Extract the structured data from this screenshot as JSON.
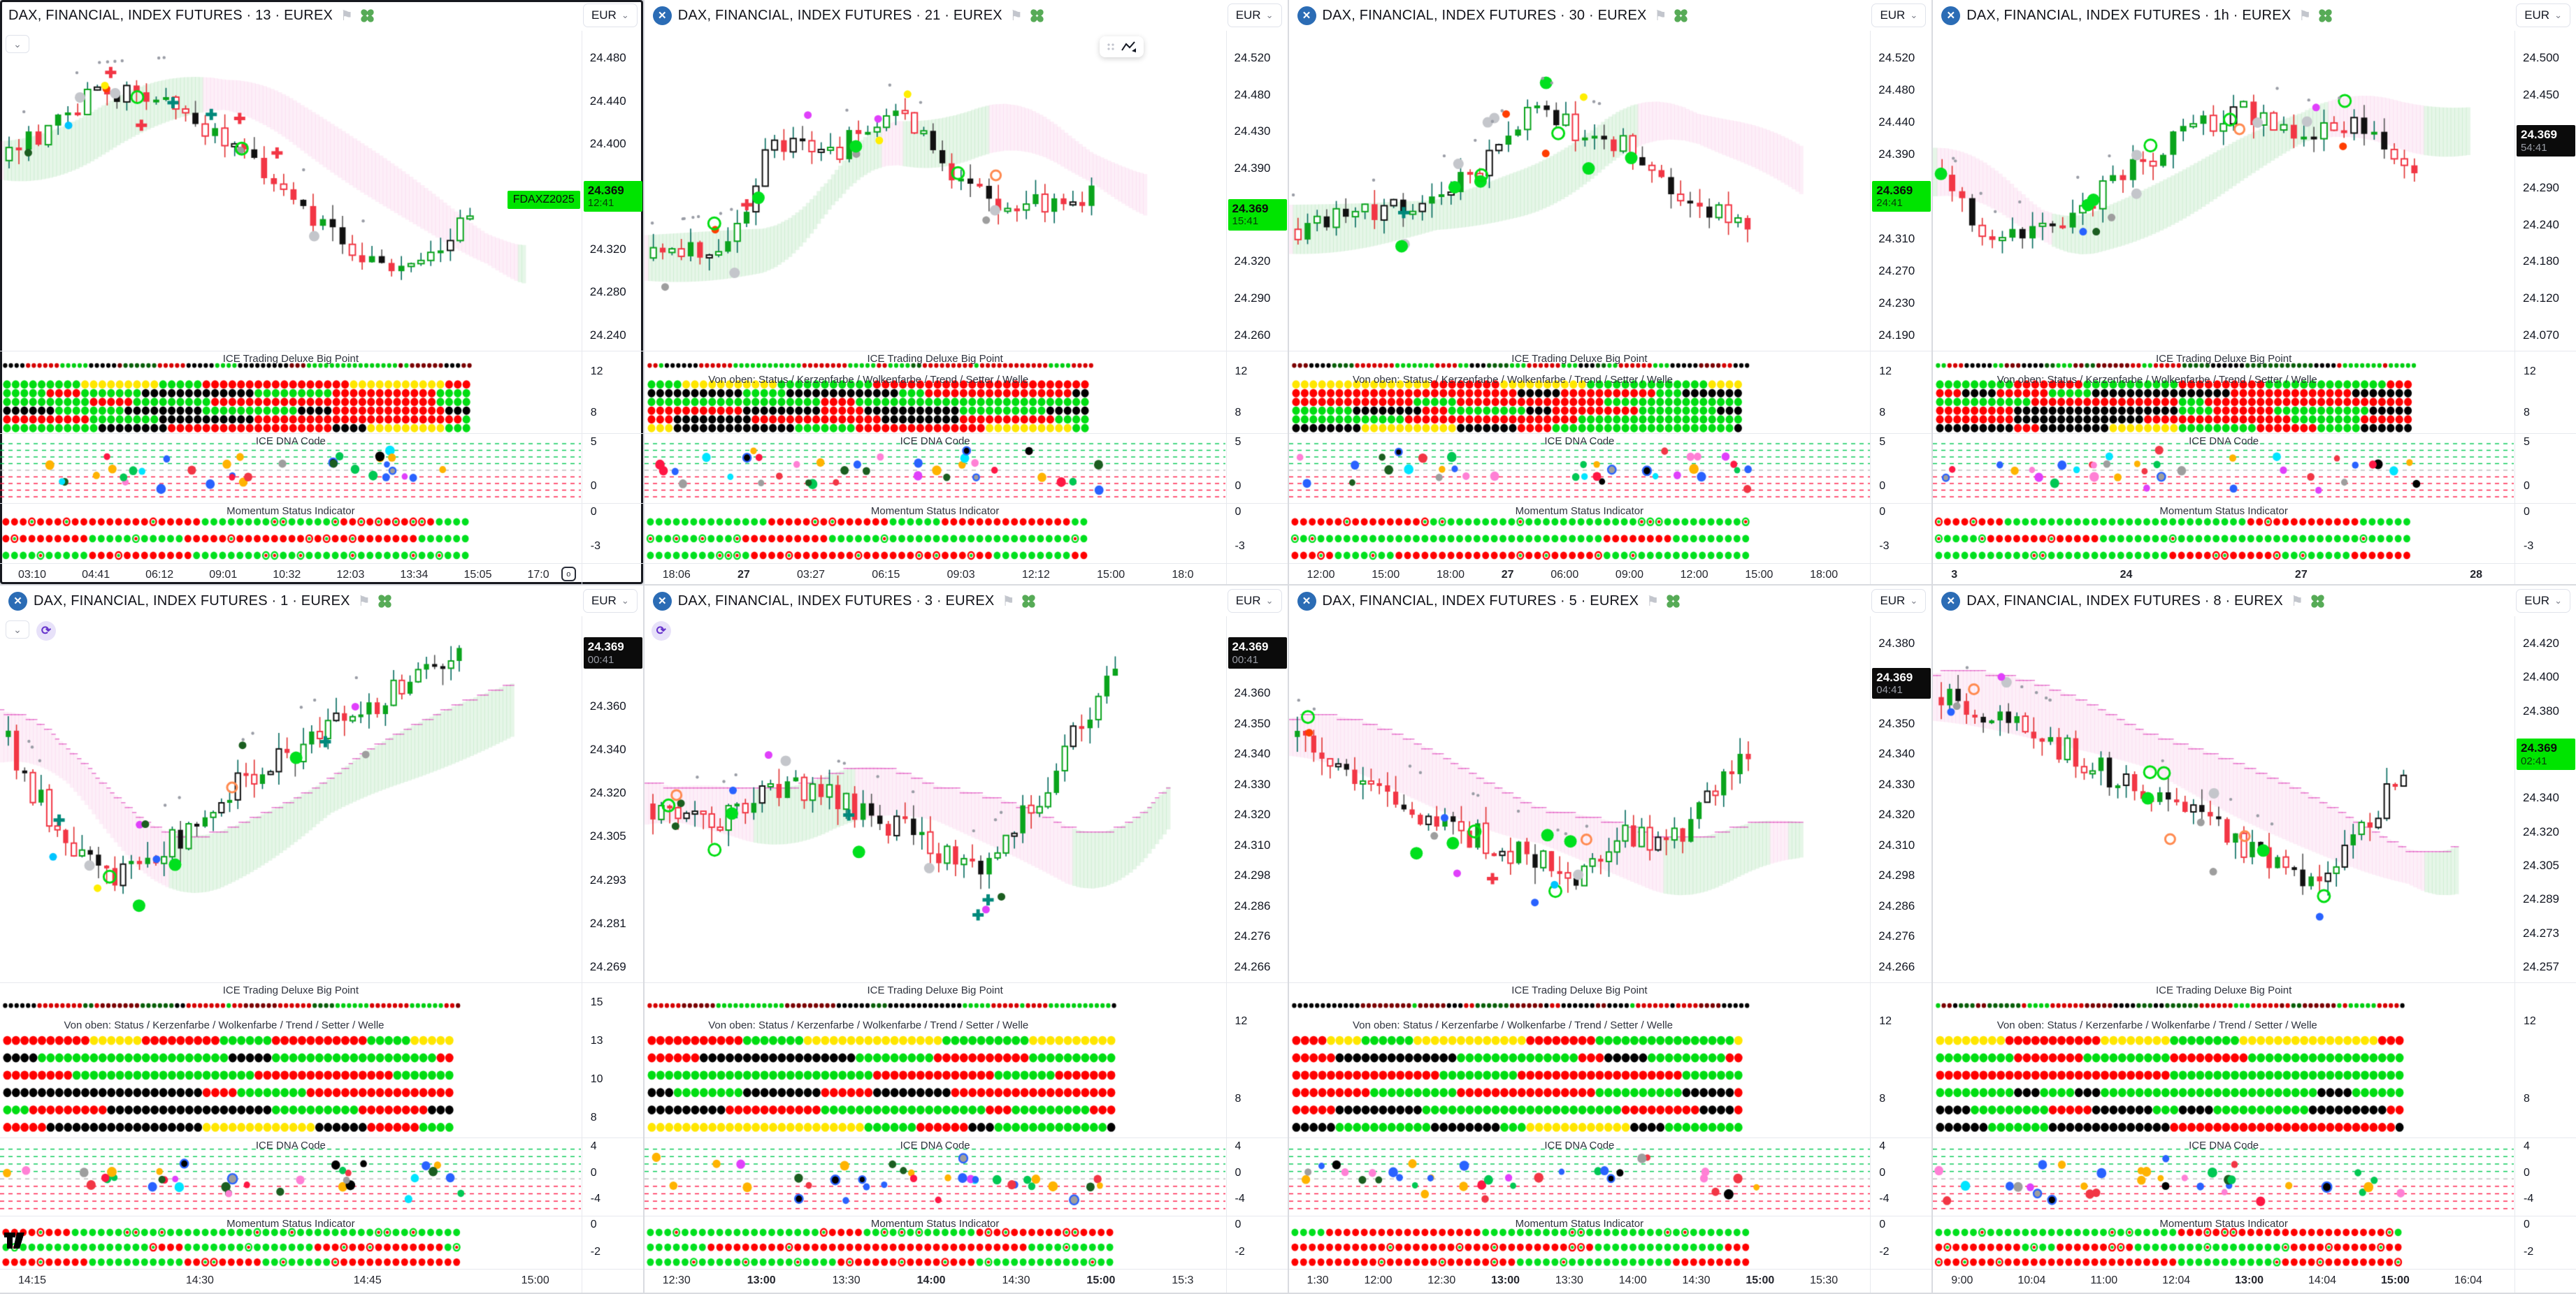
{
  "shared": {
    "currency": "EUR",
    "currency_chevron": "⌄",
    "big_point_title": "ICE Trading Deluxe Big Point",
    "von_oben_label": "Von oben: Status / Kerzenfarbe / Wolkenfarbe / Trend / Setter / Welle",
    "dna_title": "ICE DNA Code",
    "momentum_title": "Momentum Status Indicator",
    "eurex_logo_glyph": "✕",
    "flag_glyph": "⚑",
    "collapse_glyph": "⌄",
    "refresh_glyph": "⟳",
    "colors": {
      "up": "#0aa41c",
      "down": "#f23645",
      "neutral": "#111111",
      "badge_green": "#00e400",
      "badge_black": "#0b0b0b",
      "cloud_green": "rgba(10,164,28,0.10)",
      "cloud_pink": "rgba(233,30,160,0.07)",
      "cloud_edge": "rgba(221,68,187,0.65)",
      "dna_line_green": "#00c853",
      "dna_line_red": "#ff1744",
      "dna_line_gray": "#b8b8b8"
    }
  },
  "panels": [
    {
      "title": "DAX, FINANCIAL, INDEX FUTURES · 13 · EUREX",
      "show_logo": false,
      "active": true,
      "badge": {
        "symbol": "FDAXZ2025",
        "price": "24.369",
        "countdown": "12:41",
        "variant": "green"
      },
      "price_axis": [
        "24.480",
        "24.440",
        "24.400",
        "24.320",
        "24.280",
        "24.240"
      ],
      "badge_after": 2,
      "time_axis": [
        {
          "t": "03:10"
        },
        {
          "t": "04:41"
        },
        {
          "t": "06:12"
        },
        {
          "t": "09:01"
        },
        {
          "t": "10:32"
        },
        {
          "t": "12:03"
        },
        {
          "t": "13:34"
        },
        {
          "t": "15:05"
        },
        {
          "t": "17:0"
        }
      ],
      "axes": {
        "big_point": [
          "12",
          "8"
        ],
        "dna": [
          "5",
          "0"
        ],
        "momentum": [
          "0",
          "-3"
        ]
      },
      "show_von_oben": false,
      "collapse_btn": true,
      "clock_icon": true,
      "seed": 101,
      "extent": 0.82,
      "trend": [
        [
          0,
          0.38
        ],
        [
          0.18,
          0.16
        ],
        [
          0.34,
          0.14
        ],
        [
          0.48,
          0.34
        ],
        [
          0.62,
          0.52
        ],
        [
          0.76,
          0.72
        ],
        [
          0.86,
          0.78
        ],
        [
          1,
          0.52
        ]
      ]
    },
    {
      "title": "DAX, FINANCIAL, INDEX FUTURES · 21 · EUREX",
      "show_logo": true,
      "badge": {
        "price": "24.369",
        "countdown": "15:41",
        "variant": "green"
      },
      "price_axis": [
        "24.520",
        "24.480",
        "24.430",
        "24.390",
        "24.320",
        "24.290",
        "24.260"
      ],
      "badge_after": 3,
      "time_axis": [
        {
          "t": "18:06"
        },
        {
          "t": "27",
          "b": true
        },
        {
          "t": "03:27"
        },
        {
          "t": "06:15"
        },
        {
          "t": "09:03"
        },
        {
          "t": "12:12"
        },
        {
          "t": "15:00"
        },
        {
          "t": "18:0"
        }
      ],
      "axes": {
        "big_point": [
          "12",
          "8"
        ],
        "dna": [
          "5",
          "0"
        ],
        "momentum": [
          "0",
          "-3"
        ]
      },
      "show_von_oben": true,
      "float_toolbar": true,
      "seed": 202,
      "extent": 0.78,
      "trend": [
        [
          0,
          0.72
        ],
        [
          0.18,
          0.68
        ],
        [
          0.28,
          0.3
        ],
        [
          0.42,
          0.34
        ],
        [
          0.55,
          0.22
        ],
        [
          0.68,
          0.42
        ],
        [
          0.82,
          0.55
        ],
        [
          1,
          0.5
        ]
      ]
    },
    {
      "title": "DAX, FINANCIAL, INDEX FUTURES · 30 · EUREX",
      "show_logo": true,
      "badge": {
        "price": "24.369",
        "countdown": "24:41",
        "variant": "green"
      },
      "price_axis": [
        "24.520",
        "24.480",
        "24.440",
        "24.390",
        "24.310",
        "24.270",
        "24.230",
        "24.190"
      ],
      "badge_after": 3,
      "time_axis": [
        {
          "t": "12:00"
        },
        {
          "t": "15:00"
        },
        {
          "t": "18:00"
        },
        {
          "t": "27",
          "b": true
        },
        {
          "t": "06:00"
        },
        {
          "t": "09:00"
        },
        {
          "t": "12:00"
        },
        {
          "t": "15:00"
        },
        {
          "t": "18:00"
        }
      ],
      "axes": {
        "big_point": [
          "12",
          "8"
        ],
        "dna": [
          "5",
          "0"
        ],
        "momentum": [
          "0",
          "-3"
        ]
      },
      "show_von_oben": true,
      "seed": 303,
      "extent": 0.8,
      "trend": [
        [
          0,
          0.62
        ],
        [
          0.2,
          0.56
        ],
        [
          0.38,
          0.45
        ],
        [
          0.52,
          0.2
        ],
        [
          0.62,
          0.28
        ],
        [
          0.75,
          0.35
        ],
        [
          0.88,
          0.55
        ],
        [
          1,
          0.62
        ]
      ]
    },
    {
      "title": "DAX, FINANCIAL, INDEX FUTURES · 1h · EUREX",
      "show_logo": true,
      "badge": {
        "price": "24.369",
        "countdown": "54:41",
        "variant": "black"
      },
      "price_axis": [
        "24.500",
        "24.450",
        "24.290",
        "24.240",
        "24.180",
        "24.120",
        "24.070"
      ],
      "badge_after": 1,
      "time_axis": [
        {
          "t": "3",
          "b": true
        },
        {
          "t": "24",
          "b": true
        },
        {
          "t": "27",
          "b": true
        },
        {
          "t": "28",
          "b": true
        }
      ],
      "axes": {
        "big_point": [
          "12",
          "8"
        ],
        "dna": [
          "5",
          "0"
        ],
        "momentum": [
          "0",
          "-3"
        ]
      },
      "show_von_oben": true,
      "seed": 404,
      "extent": 0.84,
      "trend": [
        [
          0,
          0.42
        ],
        [
          0.12,
          0.68
        ],
        [
          0.3,
          0.55
        ],
        [
          0.5,
          0.3
        ],
        [
          0.62,
          0.2
        ],
        [
          0.78,
          0.3
        ],
        [
          0.9,
          0.25
        ],
        [
          1,
          0.45
        ]
      ]
    },
    {
      "title": "DAX, FINANCIAL, INDEX FUTURES · 1 · EUREX",
      "show_logo": true,
      "badge": {
        "price": "24.369",
        "countdown": "00:41",
        "variant": "black"
      },
      "price_axis": [
        "24.360",
        "24.340",
        "24.320",
        "24.305",
        "24.293",
        "24.281",
        "24.269"
      ],
      "badge_after": -1,
      "time_axis": [
        {
          "t": "14:15"
        },
        {
          "t": "14:30"
        },
        {
          "t": "14:45"
        },
        {
          "t": "15:00"
        }
      ],
      "axes": {
        "big_point": [
          "15",
          "13",
          "10",
          "8"
        ],
        "dna": [
          "4",
          "0",
          "-4"
        ],
        "momentum": [
          "0",
          "-2"
        ]
      },
      "show_von_oben": true,
      "collapse_btn": true,
      "refresh_icon": true,
      "tv_logo": true,
      "seed": 505,
      "extent": 0.8,
      "trend": [
        [
          0,
          0.3
        ],
        [
          0.1,
          0.55
        ],
        [
          0.22,
          0.72
        ],
        [
          0.38,
          0.6
        ],
        [
          0.52,
          0.42
        ],
        [
          0.68,
          0.3
        ],
        [
          0.84,
          0.18
        ],
        [
          1,
          0.06
        ]
      ]
    },
    {
      "title": "DAX, FINANCIAL, INDEX FUTURES · 3 · EUREX",
      "show_logo": true,
      "badge": {
        "price": "24.369",
        "countdown": "00:41",
        "variant": "black"
      },
      "price_axis": [
        "24.360",
        "24.350",
        "24.340",
        "24.330",
        "24.320",
        "24.310",
        "24.298",
        "24.286",
        "24.276",
        "24.266"
      ],
      "badge_after": -1,
      "time_axis": [
        {
          "t": "12:30"
        },
        {
          "t": "13:00",
          "b": true
        },
        {
          "t": "13:30"
        },
        {
          "t": "14:00",
          "b": true
        },
        {
          "t": "14:30"
        },
        {
          "t": "15:00",
          "b": true
        },
        {
          "t": "15:3"
        }
      ],
      "axes": {
        "big_point": [
          "12",
          "8"
        ],
        "dna": [
          "4",
          "0",
          "-4"
        ],
        "momentum": [
          "0",
          "-2"
        ]
      },
      "show_von_oben": true,
      "refresh_icon": true,
      "seed": 606,
      "extent": 0.82,
      "trend": [
        [
          0,
          0.5
        ],
        [
          0.15,
          0.56
        ],
        [
          0.3,
          0.44
        ],
        [
          0.45,
          0.52
        ],
        [
          0.58,
          0.6
        ],
        [
          0.7,
          0.72
        ],
        [
          0.82,
          0.5
        ],
        [
          0.92,
          0.25
        ],
        [
          1,
          0.06
        ]
      ]
    },
    {
      "title": "DAX, FINANCIAL, INDEX FUTURES · 5 · EUREX",
      "show_logo": true,
      "badge": {
        "price": "24.369",
        "countdown": "04:41",
        "variant": "black"
      },
      "price_axis": [
        "24.380",
        "24.350",
        "24.340",
        "24.330",
        "24.320",
        "24.310",
        "24.298",
        "24.286",
        "24.276",
        "24.266"
      ],
      "badge_after": 0,
      "time_axis": [
        {
          "t": "1:30"
        },
        {
          "t": "12:00"
        },
        {
          "t": "12:30"
        },
        {
          "t": "13:00",
          "b": true
        },
        {
          "t": "13:30"
        },
        {
          "t": "14:00"
        },
        {
          "t": "14:30"
        },
        {
          "t": "15:00",
          "b": true
        },
        {
          "t": "15:30"
        }
      ],
      "axes": {
        "big_point": [
          "12",
          "8"
        ],
        "dna": [
          "4",
          "0",
          "-4"
        ],
        "momentum": [
          "0",
          "-2"
        ]
      },
      "show_von_oben": true,
      "seed": 707,
      "extent": 0.8,
      "trend": [
        [
          0,
          0.3
        ],
        [
          0.15,
          0.42
        ],
        [
          0.3,
          0.55
        ],
        [
          0.45,
          0.62
        ],
        [
          0.6,
          0.72
        ],
        [
          0.72,
          0.6
        ],
        [
          0.85,
          0.62
        ],
        [
          0.94,
          0.4
        ],
        [
          1,
          0.32
        ]
      ]
    },
    {
      "title": "DAX, FINANCIAL, INDEX FUTURES · 8 · EUREX",
      "show_logo": true,
      "badge": {
        "price": "24.369",
        "countdown": "02:41",
        "variant": "green"
      },
      "price_axis": [
        "24.420",
        "24.400",
        "24.380",
        "24.340",
        "24.320",
        "24.305",
        "24.289",
        "24.273",
        "24.257"
      ],
      "badge_after": 2,
      "time_axis": [
        {
          "t": "9:00"
        },
        {
          "t": "10:04"
        },
        {
          "t": "11:00"
        },
        {
          "t": "12:04"
        },
        {
          "t": "13:00",
          "b": true
        },
        {
          "t": "14:04"
        },
        {
          "t": "15:00",
          "b": true
        },
        {
          "t": "16:04"
        }
      ],
      "axes": {
        "big_point": [
          "12",
          "8"
        ],
        "dna": [
          "4",
          "0",
          "-4"
        ],
        "momentum": [
          "0",
          "-2"
        ]
      },
      "show_von_oben": true,
      "seed": 808,
      "extent": 0.82,
      "trend": [
        [
          0,
          0.18
        ],
        [
          0.2,
          0.28
        ],
        [
          0.38,
          0.42
        ],
        [
          0.55,
          0.55
        ],
        [
          0.7,
          0.68
        ],
        [
          0.82,
          0.74
        ],
        [
          0.92,
          0.55
        ],
        [
          1,
          0.38
        ]
      ]
    }
  ]
}
